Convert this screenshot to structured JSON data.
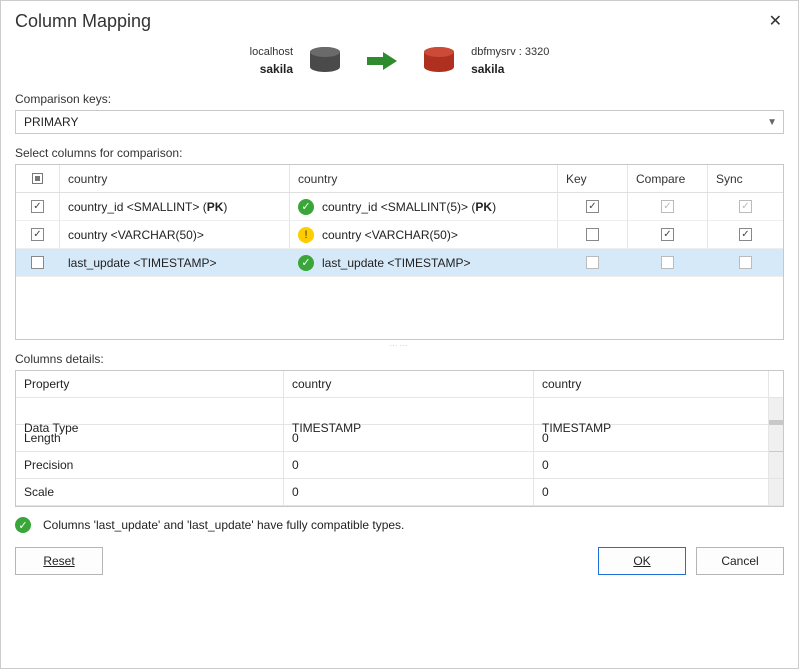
{
  "dialog": {
    "title": "Column Mapping",
    "close_label": "✕"
  },
  "connection": {
    "source": {
      "host": "localhost",
      "schema": "sakila"
    },
    "target": {
      "host": "dbfmysrv : 3320",
      "schema": "sakila"
    }
  },
  "comparison_keys": {
    "label": "Comparison keys:",
    "value": "PRIMARY"
  },
  "columns_section": {
    "label": "Select columns for comparison:",
    "headers": {
      "source": "country",
      "target": "country",
      "key": "Key",
      "compare": "Compare",
      "sync": "Sync"
    },
    "rows": [
      {
        "row_checked": true,
        "source_name": "country_id",
        "source_type": "SMALLINT",
        "source_pk": true,
        "target_status": "ok",
        "target_name": "country_id",
        "target_type": "SMALLINT(5)",
        "target_pk": true,
        "key": true,
        "key_dim": false,
        "compare": true,
        "compare_dim": true,
        "sync": true,
        "sync_dim": true,
        "selected": false
      },
      {
        "row_checked": true,
        "source_name": "country",
        "source_type": "VARCHAR(50)",
        "source_pk": false,
        "target_status": "warn",
        "target_name": "country",
        "target_type": "VARCHAR(50)",
        "target_pk": false,
        "key": false,
        "key_dim": false,
        "compare": true,
        "compare_dim": false,
        "sync": true,
        "sync_dim": false,
        "selected": false
      },
      {
        "row_checked": false,
        "source_name": "last_update",
        "source_type": "TIMESTAMP",
        "source_pk": false,
        "target_status": "ok",
        "target_name": "last_update",
        "target_type": "TIMESTAMP",
        "target_pk": false,
        "key": false,
        "key_dim": true,
        "compare": false,
        "compare_dim": true,
        "sync": false,
        "sync_dim": true,
        "selected": true
      }
    ]
  },
  "details": {
    "label": "Columns details:",
    "headers": {
      "property": "Property",
      "source": "country",
      "target": "country"
    },
    "rows": [
      {
        "property": "Data Type",
        "source": "TIMESTAMP",
        "target": "TIMESTAMP"
      },
      {
        "property": "Length",
        "source": "0",
        "target": "0"
      },
      {
        "property": "Precision",
        "source": "0",
        "target": "0"
      },
      {
        "property": "Scale",
        "source": "0",
        "target": "0"
      }
    ]
  },
  "status_message": "Columns 'last_update' and 'last_update' have fully compatible types.",
  "buttons": {
    "reset": "Reset",
    "ok": "OK",
    "cancel": "Cancel"
  },
  "colors": {
    "source_db": "#4a4a4a",
    "target_db": "#b03020",
    "arrow": "#2e8b2e",
    "selected_row": "#d6e9f8",
    "primary_border": "#1e6fd6"
  }
}
